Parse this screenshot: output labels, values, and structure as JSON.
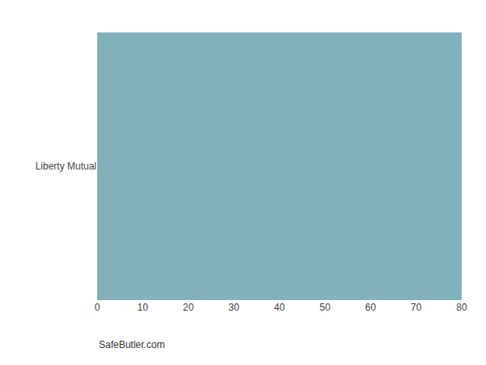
{
  "chart_data": {
    "type": "bar",
    "orientation": "horizontal",
    "categories": [
      "Liberty Mutual"
    ],
    "values": [
      80
    ],
    "color": "#82b0bb",
    "xlim": [
      0,
      80
    ],
    "xticks": [
      0,
      10,
      20,
      30,
      40,
      50,
      60,
      70,
      80
    ],
    "grid": true,
    "annotations": [
      "SafeButler.com"
    ]
  }
}
